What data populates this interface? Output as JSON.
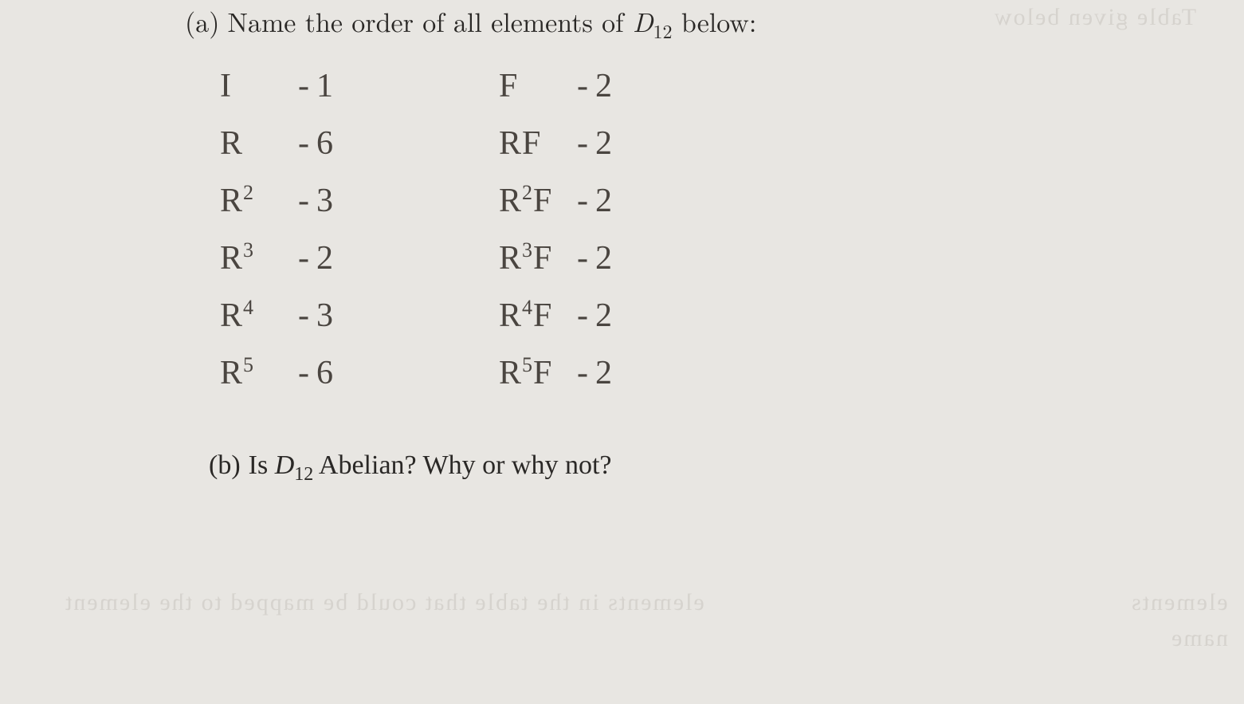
{
  "background_color": "#e8e6e2",
  "text_color": "#2a2826",
  "handwriting_color": "#4a4540",
  "ghost_color": "#cbc8c2",
  "question_a": {
    "label": "(a)",
    "text_before": "Name the order of all elements of ",
    "symbol": "D",
    "subscript": "12",
    "text_after": " below:"
  },
  "question_b": {
    "label": "(b)",
    "text_before": "Is ",
    "symbol": "D",
    "subscript": "12",
    "text_after": " Abelian? Why or why not?"
  },
  "left_column": [
    {
      "symbol": "I",
      "sup": "",
      "value": "1"
    },
    {
      "symbol": "R",
      "sup": "",
      "value": "6"
    },
    {
      "symbol": "R",
      "sup": "2",
      "value": "3"
    },
    {
      "symbol": "R",
      "sup": "3",
      "value": "2"
    },
    {
      "symbol": "R",
      "sup": "4",
      "value": "3"
    },
    {
      "symbol": "R",
      "sup": "5",
      "value": "6"
    }
  ],
  "right_column": [
    {
      "symbol": "F",
      "sup": "",
      "value": "2"
    },
    {
      "symbol": "RF",
      "sup": "",
      "value": "2"
    },
    {
      "symbol": "R",
      "sup": "2",
      "suffix": "F",
      "value": "2"
    },
    {
      "symbol": "R",
      "sup": "3",
      "suffix": "F",
      "value": "2"
    },
    {
      "symbol": "R",
      "sup": "4",
      "suffix": "F",
      "value": "2"
    },
    {
      "symbol": "R",
      "sup": "5",
      "suffix": "F",
      "value": "2"
    }
  ],
  "ghost_text": {
    "g1": "elements in the table that could be mapped to the element",
    "g2": "elements",
    "g3": "name",
    "gtop": "Table given below"
  }
}
